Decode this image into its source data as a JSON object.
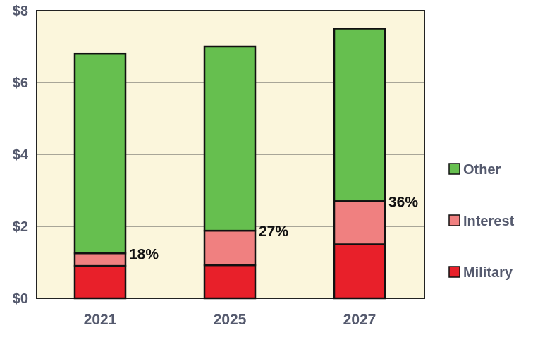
{
  "chart_data": {
    "type": "bar",
    "stacked": true,
    "categories": [
      "2021",
      "2025",
      "2027"
    ],
    "series": [
      {
        "name": "Military",
        "values": [
          0.9,
          0.92,
          1.5
        ],
        "color": "#e8202a"
      },
      {
        "name": "Interest",
        "values": [
          0.35,
          0.96,
          1.2
        ],
        "color": "#f08080"
      },
      {
        "name": "Other",
        "values": [
          5.55,
          5.12,
          4.8
        ],
        "color": "#66bf4f"
      }
    ],
    "annotations": [
      "18%",
      "27%",
      "36%"
    ],
    "yticks": [
      "$0",
      "$2",
      "$4",
      "$6",
      "$8"
    ],
    "ylim": [
      0,
      8
    ],
    "grid": true,
    "background": "#fbf6dc",
    "legend": {
      "position": "right",
      "order": [
        "Other",
        "Interest",
        "Military"
      ]
    },
    "title": "",
    "xlabel": "",
    "ylabel": ""
  }
}
